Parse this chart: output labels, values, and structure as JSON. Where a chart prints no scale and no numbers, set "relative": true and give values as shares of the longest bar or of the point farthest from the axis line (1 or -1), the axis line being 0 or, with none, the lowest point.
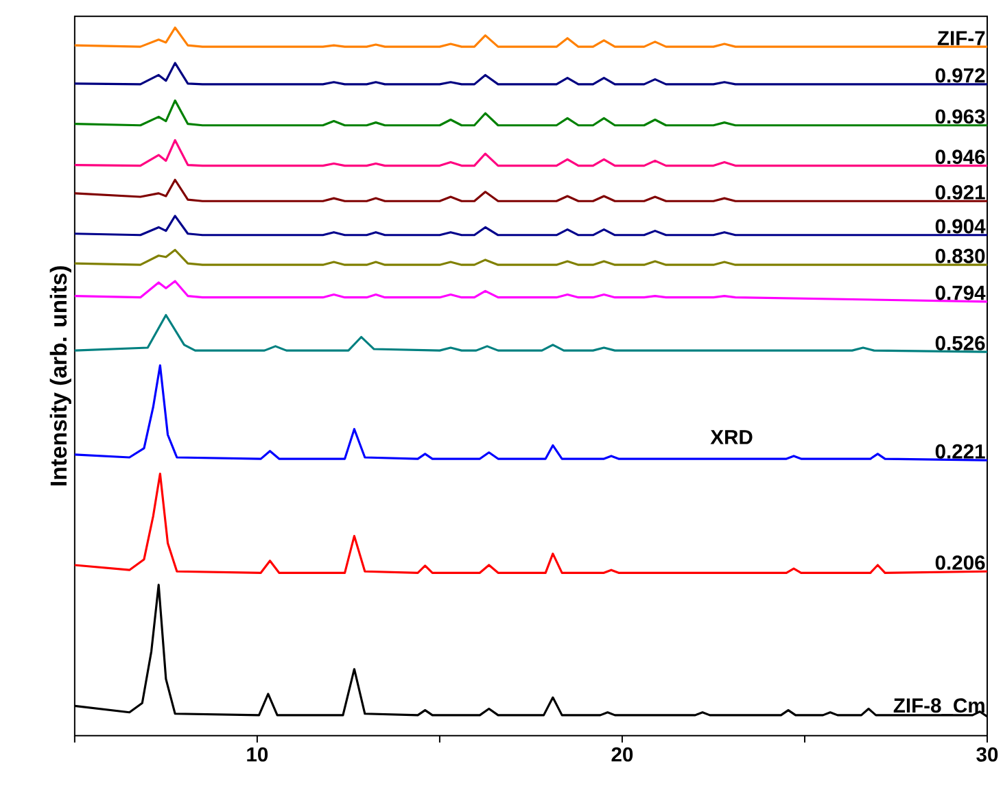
{
  "chart_data": {
    "type": "line",
    "ylabel": "Intensity (arb. units)",
    "relative": true,
    "xlim": [
      5,
      30
    ],
    "xticks": [
      {
        "value": 5,
        "label": null
      },
      10,
      {
        "value": 15,
        "label": null
      },
      20,
      {
        "value": 25,
        "label": null
      },
      30
    ],
    "annotations": [
      "XRD"
    ],
    "series": [
      {
        "name": "ZIF-7",
        "color": "#ff8000",
        "x": [
          5,
          6.8,
          7.3,
          7.5,
          7.75,
          8.1,
          8.5,
          11.8,
          12.1,
          12.4,
          13.0,
          13.25,
          13.5,
          15.0,
          15.3,
          15.6,
          15.95,
          16.25,
          16.6,
          18.2,
          18.5,
          18.8,
          19.2,
          19.5,
          19.8,
          20.6,
          20.9,
          21.2,
          22.5,
          22.8,
          23.1,
          30
        ],
        "values": [
          0.975,
          0.973,
          0.983,
          0.979,
          1.0,
          0.975,
          0.973,
          0.973,
          0.975,
          0.973,
          0.973,
          0.976,
          0.973,
          0.973,
          0.977,
          0.973,
          0.973,
          0.989,
          0.973,
          0.973,
          0.985,
          0.973,
          0.973,
          0.982,
          0.973,
          0.973,
          0.98,
          0.973,
          0.973,
          0.977,
          0.973,
          0.973
        ]
      },
      {
        "name": "0.972",
        "color": "#000080",
        "x": [
          5,
          6.8,
          7.3,
          7.5,
          7.75,
          8.1,
          8.5,
          11.8,
          12.1,
          12.4,
          13.0,
          13.25,
          13.5,
          15.0,
          15.3,
          15.6,
          15.95,
          16.25,
          16.6,
          18.2,
          18.5,
          18.8,
          19.2,
          19.5,
          19.8,
          20.6,
          20.9,
          21.2,
          22.5,
          22.8,
          23.1,
          30
        ],
        "values": [
          0.921,
          0.92,
          0.933,
          0.925,
          0.95,
          0.921,
          0.92,
          0.92,
          0.923,
          0.92,
          0.92,
          0.923,
          0.92,
          0.92,
          0.923,
          0.92,
          0.92,
          0.933,
          0.92,
          0.92,
          0.929,
          0.92,
          0.92,
          0.929,
          0.92,
          0.92,
          0.927,
          0.92,
          0.92,
          0.923,
          0.92,
          0.92
        ]
      },
      {
        "name": "0.963",
        "color": "#008000",
        "x": [
          5,
          6.8,
          7.3,
          7.5,
          7.75,
          8.1,
          8.5,
          11.8,
          12.1,
          12.4,
          13.0,
          13.25,
          13.5,
          15.0,
          15.3,
          15.6,
          15.95,
          16.25,
          16.6,
          18.2,
          18.5,
          18.8,
          19.2,
          19.5,
          19.8,
          20.6,
          20.9,
          21.2,
          22.5,
          22.8,
          23.1,
          30
        ],
        "values": [
          0.864,
          0.862,
          0.874,
          0.868,
          0.897,
          0.864,
          0.862,
          0.862,
          0.868,
          0.862,
          0.862,
          0.866,
          0.862,
          0.862,
          0.87,
          0.862,
          0.862,
          0.879,
          0.862,
          0.862,
          0.872,
          0.862,
          0.862,
          0.872,
          0.862,
          0.862,
          0.87,
          0.862,
          0.862,
          0.866,
          0.862,
          0.862
        ]
      },
      {
        "name": "0.946",
        "color": "#ff0080",
        "x": [
          5,
          6.8,
          7.3,
          7.5,
          7.75,
          8.1,
          8.5,
          11.8,
          12.1,
          12.4,
          13.0,
          13.25,
          13.5,
          15.0,
          15.3,
          15.6,
          15.95,
          16.25,
          16.6,
          18.2,
          18.5,
          18.8,
          19.2,
          19.5,
          19.8,
          20.6,
          20.9,
          21.2,
          22.5,
          22.8,
          23.1,
          30
        ],
        "values": [
          0.806,
          0.805,
          0.82,
          0.812,
          0.841,
          0.806,
          0.805,
          0.805,
          0.808,
          0.805,
          0.805,
          0.808,
          0.805,
          0.805,
          0.81,
          0.805,
          0.805,
          0.822,
          0.805,
          0.805,
          0.814,
          0.805,
          0.805,
          0.814,
          0.805,
          0.805,
          0.812,
          0.805,
          0.805,
          0.81,
          0.805,
          0.805
        ]
      },
      {
        "name": "0.921",
        "color": "#800000",
        "x": [
          5,
          6.8,
          7.3,
          7.5,
          7.75,
          8.1,
          8.5,
          11.8,
          12.1,
          12.4,
          13.0,
          13.25,
          13.5,
          15.0,
          15.3,
          15.6,
          15.95,
          16.25,
          16.6,
          18.2,
          18.5,
          18.8,
          19.2,
          19.5,
          19.8,
          20.6,
          20.9,
          21.2,
          22.5,
          22.8,
          23.1,
          30
        ],
        "values": [
          0.766,
          0.761,
          0.766,
          0.762,
          0.785,
          0.757,
          0.755,
          0.755,
          0.759,
          0.755,
          0.755,
          0.759,
          0.755,
          0.755,
          0.761,
          0.755,
          0.755,
          0.768,
          0.755,
          0.755,
          0.762,
          0.755,
          0.755,
          0.762,
          0.755,
          0.755,
          0.761,
          0.755,
          0.755,
          0.759,
          0.755,
          0.755
        ]
      },
      {
        "name": "0.904",
        "color": "#00008b",
        "x": [
          5,
          6.8,
          7.3,
          7.5,
          7.75,
          8.1,
          8.5,
          11.8,
          12.1,
          12.4,
          13.0,
          13.25,
          13.5,
          15.0,
          15.3,
          15.6,
          15.95,
          16.25,
          16.6,
          18.2,
          18.5,
          18.8,
          19.2,
          19.5,
          19.8,
          20.6,
          20.9,
          21.2,
          22.5,
          22.8,
          23.1,
          30
        ],
        "values": [
          0.709,
          0.707,
          0.718,
          0.713,
          0.734,
          0.709,
          0.707,
          0.707,
          0.711,
          0.707,
          0.707,
          0.711,
          0.707,
          0.707,
          0.711,
          0.707,
          0.707,
          0.718,
          0.707,
          0.707,
          0.715,
          0.707,
          0.707,
          0.715,
          0.707,
          0.707,
          0.713,
          0.707,
          0.707,
          0.711,
          0.707,
          0.707
        ]
      },
      {
        "name": "0.830",
        "color": "#808000",
        "x": [
          5,
          6.8,
          7.3,
          7.5,
          7.75,
          8.1,
          8.5,
          11.8,
          12.1,
          12.4,
          13.0,
          13.25,
          13.5,
          15.0,
          15.3,
          15.6,
          15.95,
          16.25,
          16.6,
          18.2,
          18.5,
          18.8,
          19.2,
          19.5,
          19.8,
          20.6,
          20.9,
          21.2,
          22.5,
          22.8,
          23.1,
          30
        ],
        "values": [
          0.667,
          0.665,
          0.678,
          0.676,
          0.686,
          0.667,
          0.665,
          0.665,
          0.669,
          0.665,
          0.665,
          0.669,
          0.665,
          0.665,
          0.669,
          0.665,
          0.665,
          0.672,
          0.665,
          0.665,
          0.67,
          0.665,
          0.665,
          0.67,
          0.665,
          0.665,
          0.67,
          0.665,
          0.665,
          0.669,
          0.665,
          0.665
        ]
      },
      {
        "name": "0.794",
        "color": "#ff00ff",
        "x": [
          5,
          6.8,
          7.3,
          7.5,
          7.75,
          8.1,
          8.5,
          11.8,
          12.1,
          12.4,
          13.0,
          13.25,
          13.5,
          15.0,
          15.3,
          15.6,
          15.95,
          16.25,
          16.6,
          18.2,
          18.5,
          18.8,
          19.2,
          19.5,
          19.8,
          20.6,
          20.9,
          21.2,
          22.5,
          22.8,
          23.1,
          30
        ],
        "values": [
          0.621,
          0.619,
          0.64,
          0.632,
          0.642,
          0.621,
          0.619,
          0.619,
          0.623,
          0.619,
          0.619,
          0.623,
          0.619,
          0.619,
          0.623,
          0.619,
          0.619,
          0.628,
          0.619,
          0.619,
          0.623,
          0.619,
          0.619,
          0.623,
          0.619,
          0.619,
          0.621,
          0.619,
          0.619,
          0.621,
          0.619,
          0.613
        ]
      },
      {
        "name": "0.526",
        "color": "#008080",
        "x": [
          5,
          7.0,
          7.5,
          8.0,
          8.3,
          10.2,
          10.5,
          10.8,
          12.5,
          12.85,
          13.2,
          15.0,
          15.3,
          15.6,
          16.0,
          16.3,
          16.6,
          17.8,
          18.1,
          18.4,
          19.2,
          19.5,
          19.8,
          26.3,
          26.6,
          26.9,
          30
        ],
        "values": [
          0.544,
          0.548,
          0.594,
          0.552,
          0.544,
          0.544,
          0.55,
          0.544,
          0.544,
          0.563,
          0.546,
          0.544,
          0.548,
          0.544,
          0.544,
          0.55,
          0.544,
          0.544,
          0.552,
          0.544,
          0.544,
          0.548,
          0.544,
          0.544,
          0.548,
          0.544,
          0.542
        ]
      },
      {
        "name": "0.221",
        "color": "#0000ff",
        "x": [
          5,
          6.5,
          6.9,
          7.15,
          7.34,
          7.55,
          7.8,
          10.1,
          10.35,
          10.6,
          12.4,
          12.66,
          12.95,
          14.4,
          14.6,
          14.8,
          16.1,
          16.35,
          16.6,
          17.9,
          18.1,
          18.35,
          19.5,
          19.7,
          19.9,
          24.5,
          24.7,
          24.9,
          26.8,
          27.0,
          27.2,
          30
        ],
        "values": [
          0.397,
          0.393,
          0.406,
          0.464,
          0.523,
          0.425,
          0.393,
          0.391,
          0.402,
          0.391,
          0.391,
          0.433,
          0.393,
          0.391,
          0.398,
          0.391,
          0.391,
          0.4,
          0.391,
          0.391,
          0.41,
          0.391,
          0.391,
          0.395,
          0.391,
          0.391,
          0.395,
          0.391,
          0.391,
          0.398,
          0.391,
          0.389
        ]
      },
      {
        "name": "0.206",
        "color": "#ff0000",
        "x": [
          5,
          6.5,
          6.9,
          7.15,
          7.34,
          7.55,
          7.8,
          10.1,
          10.35,
          10.6,
          12.4,
          12.66,
          12.95,
          14.4,
          14.6,
          14.8,
          16.1,
          16.35,
          16.6,
          17.9,
          18.1,
          18.35,
          19.5,
          19.7,
          19.9,
          24.5,
          24.7,
          24.9,
          26.8,
          27.0,
          27.2,
          30
        ],
        "values": [
          0.241,
          0.234,
          0.249,
          0.31,
          0.37,
          0.272,
          0.232,
          0.23,
          0.247,
          0.23,
          0.23,
          0.282,
          0.232,
          0.23,
          0.24,
          0.23,
          0.23,
          0.241,
          0.23,
          0.23,
          0.257,
          0.23,
          0.23,
          0.234,
          0.23,
          0.23,
          0.236,
          0.23,
          0.23,
          0.241,
          0.23,
          0.232
        ]
      },
      {
        "name": "ZIF-8_Cm",
        "color": "#000000",
        "x": [
          5,
          6.5,
          6.85,
          7.1,
          7.3,
          7.5,
          7.75,
          10.05,
          10.3,
          10.55,
          12.35,
          12.66,
          12.95,
          14.4,
          14.6,
          14.8,
          16.1,
          16.35,
          16.6,
          17.85,
          18.1,
          18.35,
          19.4,
          19.6,
          19.8,
          22.0,
          22.2,
          22.4,
          24.35,
          24.55,
          24.75,
          25.5,
          25.7,
          25.9,
          26.55,
          26.75,
          26.95,
          29.6,
          29.8,
          30
        ],
        "values": [
          0.042,
          0.033,
          0.046,
          0.119,
          0.213,
          0.08,
          0.031,
          0.029,
          0.059,
          0.029,
          0.029,
          0.094,
          0.031,
          0.029,
          0.036,
          0.029,
          0.029,
          0.038,
          0.029,
          0.029,
          0.054,
          0.029,
          0.029,
          0.033,
          0.029,
          0.029,
          0.033,
          0.029,
          0.029,
          0.036,
          0.029,
          0.029,
          0.033,
          0.029,
          0.029,
          0.038,
          0.029,
          0.029,
          0.034,
          0.027
        ]
      }
    ]
  }
}
